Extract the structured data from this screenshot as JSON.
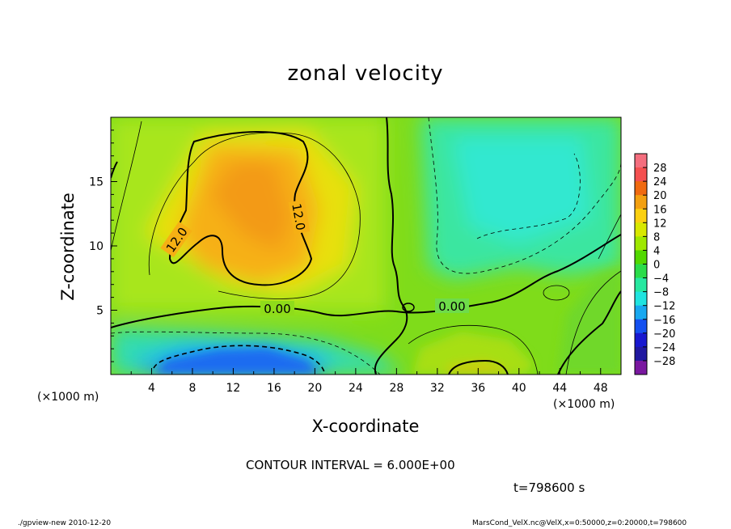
{
  "chart_data": {
    "type": "heatmap",
    "title": "zonal velocity",
    "xlabel": "X-coordinate",
    "ylabel": "Z-coordinate",
    "x_unit": "(×1000 m)",
    "xlim": [
      0,
      50
    ],
    "ylim": [
      0,
      20
    ],
    "x_ticks": [
      "4",
      "8",
      "12",
      "16",
      "20",
      "24",
      "28",
      "32",
      "36",
      "40",
      "44",
      "48"
    ],
    "y_ticks": [
      "5",
      "10",
      "15"
    ],
    "contour_interval_text": "CONTOUR INTERVAL = 6.000E+00",
    "contour_labels": [
      "12.0",
      "12.0",
      "0.00",
      "0.00"
    ],
    "colorbar_labels": [
      "28",
      "24",
      "20",
      "16",
      "12",
      "8",
      "4",
      "0",
      "−4",
      "−8",
      "−12",
      "−16",
      "−20",
      "−24",
      "−28"
    ],
    "colorbar_colors": [
      "#f46e7e",
      "#f45050",
      "#f06a10",
      "#f3a010",
      "#fbd010",
      "#d8e800",
      "#9fe800",
      "#52d800",
      "#2bdc4a",
      "#27e8a0",
      "#20e4e0",
      "#18a8f0",
      "#1450f0",
      "#1818d0",
      "#2018a0",
      "#7a18a0"
    ],
    "features": [
      {
        "name": "positive jet core",
        "x": 14,
        "z": 12.5,
        "value": 18
      },
      {
        "name": "surface positive cell",
        "x": 35,
        "z": 0.5,
        "value": 14
      },
      {
        "name": "negative surface layer",
        "x": 14,
        "z": 1,
        "value": -16
      },
      {
        "name": "negative upper region",
        "x": 40,
        "z": 14,
        "value": -10
      }
    ],
    "time_label": "t=798600 s"
  },
  "footer": {
    "left": "./gpview-new   2010-12-20",
    "right": "MarsCond_VelX.nc@VelX,x=0:50000,z=0:20000,t=798600"
  }
}
